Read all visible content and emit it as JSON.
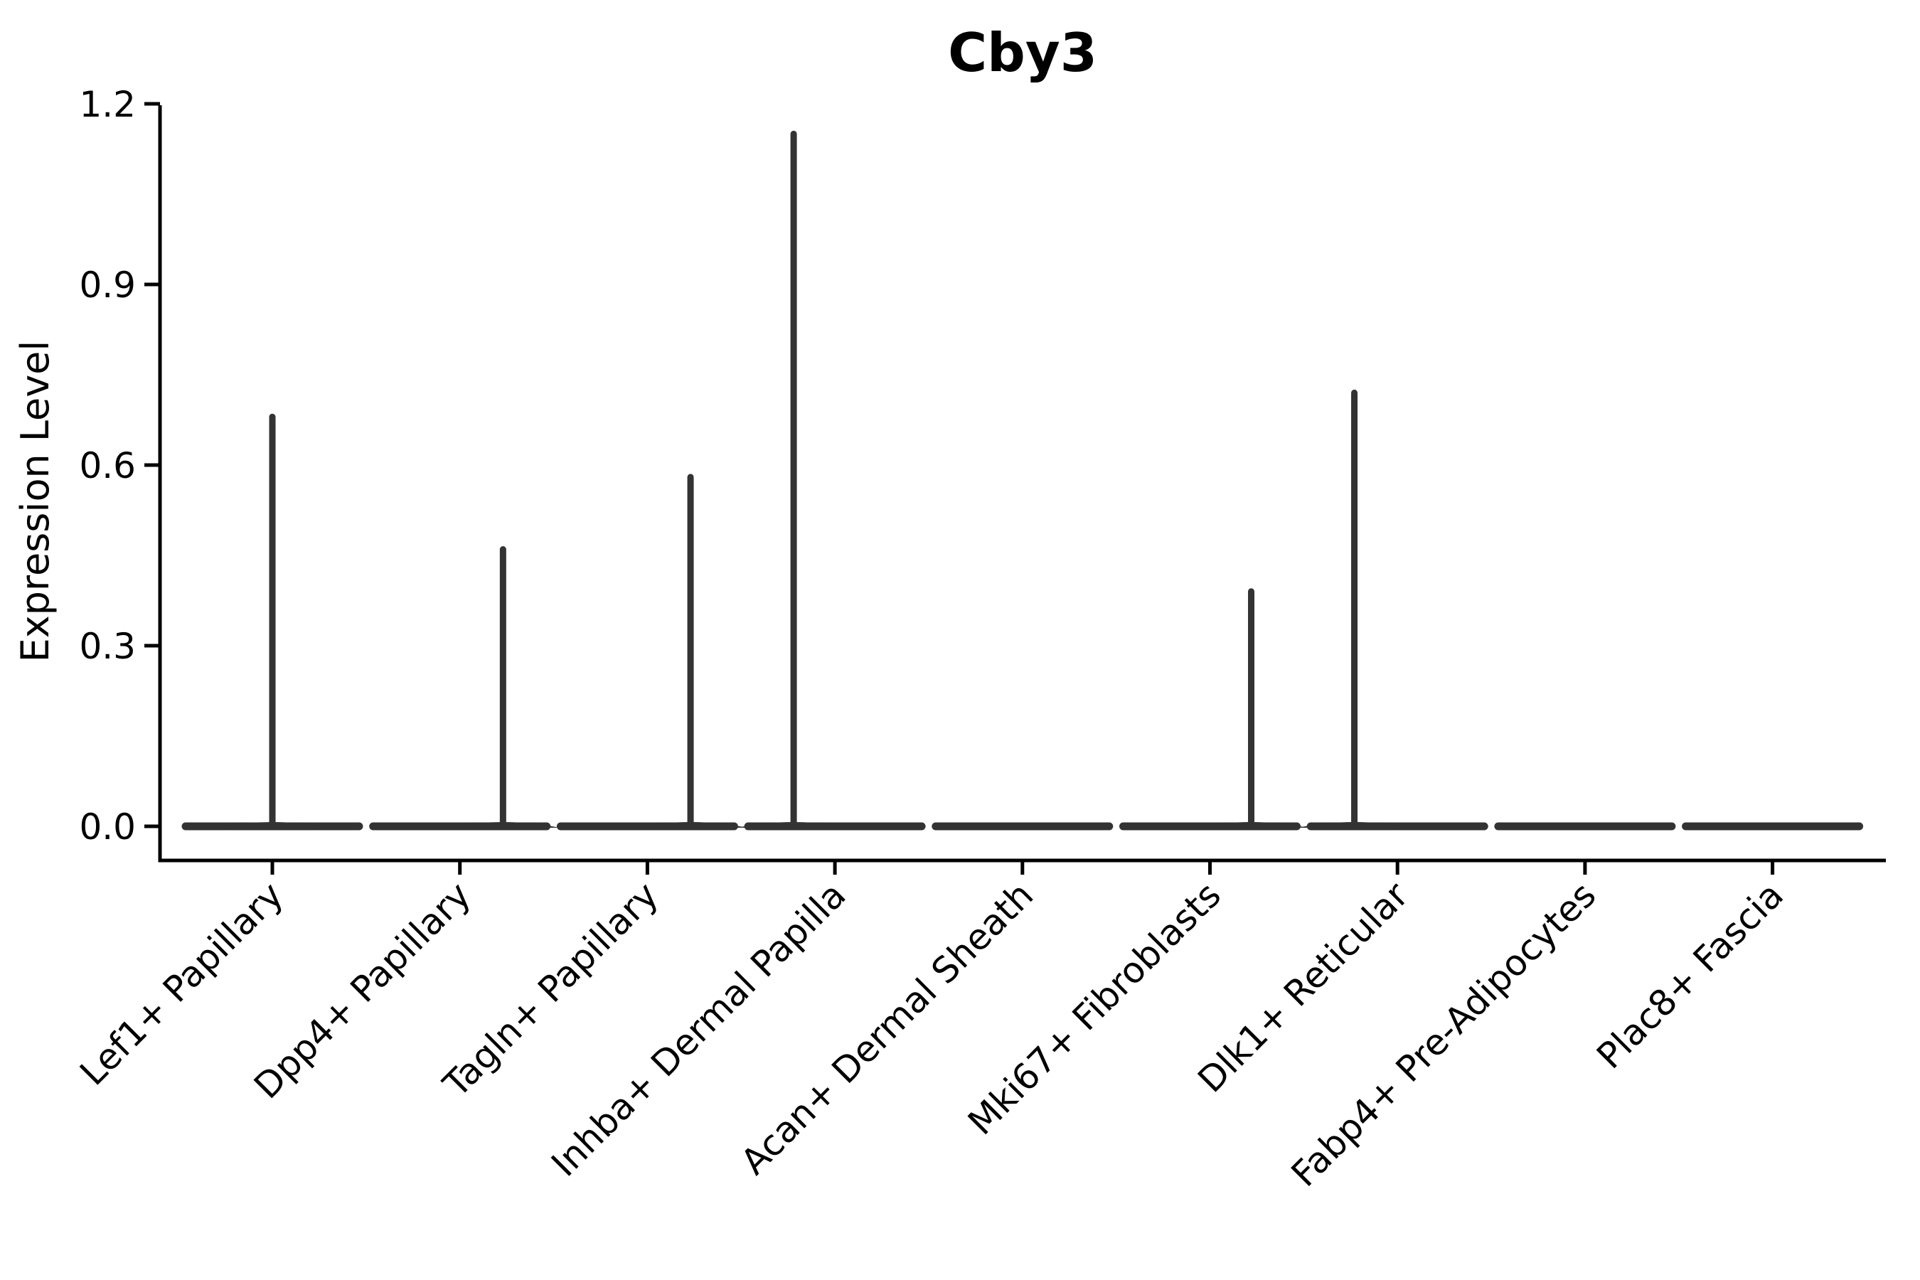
{
  "chart_data": {
    "type": "violin",
    "title": "Cby3",
    "ylabel": "Expression Level",
    "xlabel": "",
    "yticks": [
      "0.0",
      "0.3",
      "0.6",
      "0.9",
      "1.2"
    ],
    "ytick_values": [
      0.0,
      0.3,
      0.6,
      0.9,
      1.2
    ],
    "ylim": [
      -0.057,
      1.2
    ],
    "grid": false,
    "legend": "none",
    "categories": [
      "Lef1+ Papillary",
      "Dpp4+ Papillary",
      "Tagln+ Papillary",
      "Inhba+ Dermal Papilla",
      "Acan+ Dermal Sheath",
      "Mki67+ Fibroblasts",
      "Dlk1+ Reticular",
      "Fabp4+ Pre-Adipocytes",
      "Plac8+ Fascia"
    ],
    "series": [
      {
        "name": "Lef1+ Papillary",
        "baseline_value": 0.0,
        "spike_max": 0.68,
        "spike_x_offset_frac": 0.0
      },
      {
        "name": "Dpp4+ Papillary",
        "baseline_value": 0.0,
        "spike_max": 0.46,
        "spike_x_offset_frac": 0.23
      },
      {
        "name": "Tagln+ Papillary",
        "baseline_value": 0.0,
        "spike_max": 0.58,
        "spike_x_offset_frac": 0.23
      },
      {
        "name": "Inhba+ Dermal Papilla",
        "baseline_value": 0.0,
        "spike_max": 1.15,
        "spike_x_offset_frac": -0.22
      },
      {
        "name": "Acan+ Dermal Sheath",
        "baseline_value": 0.0,
        "spike_max": 0,
        "spike_x_offset_frac": null
      },
      {
        "name": "Mki67+ Fibroblasts",
        "baseline_value": 0.0,
        "spike_max": 0.39,
        "spike_x_offset_frac": 0.22
      },
      {
        "name": "Dlk1+ Reticular",
        "baseline_value": 0.0,
        "spike_max": 0.72,
        "spike_x_offset_frac": -0.23
      },
      {
        "name": "Fabp4+ Pre-Adipocytes",
        "baseline_value": 0.0,
        "spike_max": 0,
        "spike_x_offset_frac": null
      },
      {
        "name": "Plac8+ Fascia",
        "baseline_value": 0.0,
        "spike_max": 0,
        "spike_x_offset_frac": null
      }
    ],
    "colors": {
      "violin": "#333333",
      "axis": "#000000",
      "text": "#000000",
      "background": "#ffffff"
    }
  }
}
